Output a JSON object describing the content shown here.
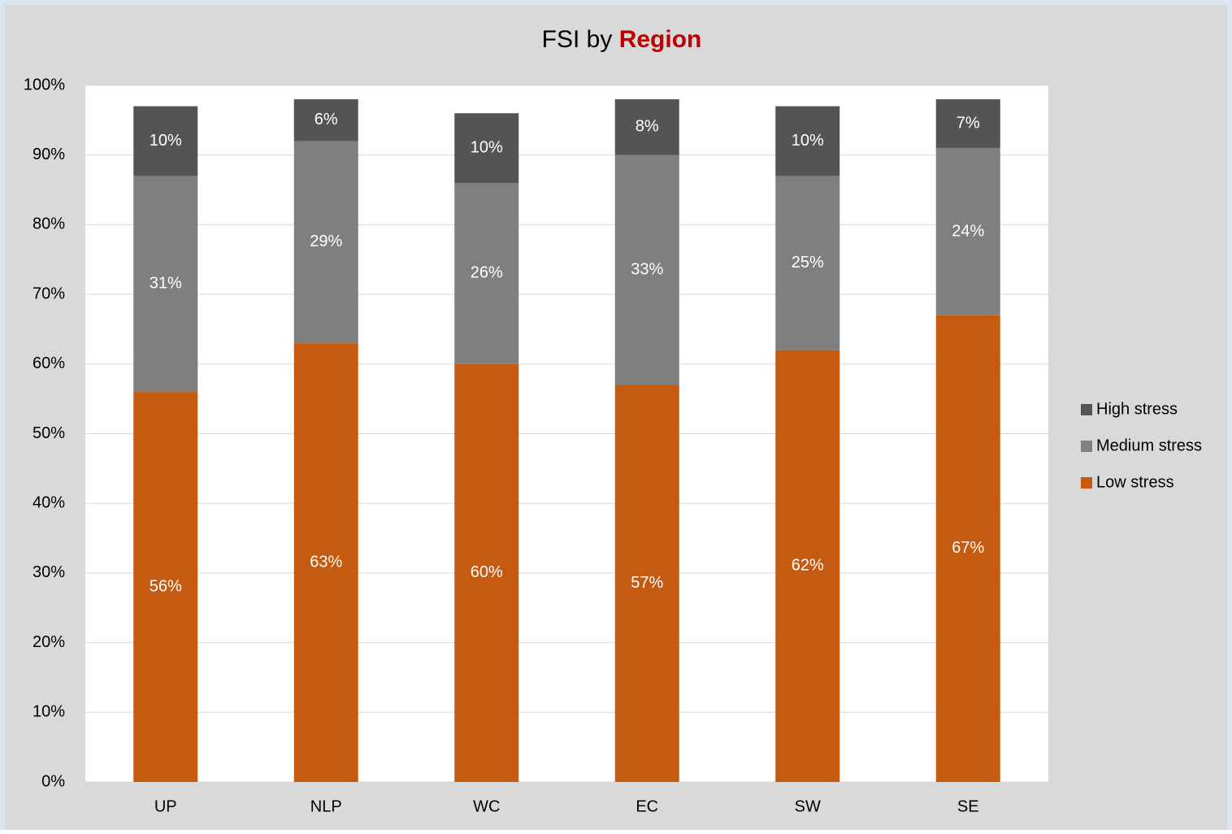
{
  "chart_data": {
    "type": "stacked_bar",
    "title": "FSI by",
    "title_emphasis": "Region",
    "categories": [
      "UP",
      "NLP",
      "WC",
      "EC",
      "SW",
      "SE"
    ],
    "series": [
      {
        "name": "Low stress",
        "color": "#c55a11",
        "values": [
          56,
          63,
          60,
          57,
          62,
          67
        ],
        "value_labels": [
          "56%",
          "63%",
          "60%",
          "57%",
          "62%",
          "67%"
        ]
      },
      {
        "name": "Medium stress",
        "color": "#7f7f7f",
        "values": [
          31,
          29,
          26,
          33,
          25,
          24
        ],
        "value_labels": [
          "31%",
          "29%",
          "26%",
          "33%",
          "25%",
          "24%"
        ]
      },
      {
        "name": "High stress",
        "color": "#545454",
        "values": [
          10,
          6,
          10,
          8,
          10,
          7
        ],
        "value_labels": [
          "10%",
          "6%",
          "10%",
          "8%",
          "10%",
          "7%"
        ]
      }
    ],
    "ylim": [
      0,
      100
    ],
    "yticks": [
      {
        "value": 0,
        "label": "0%"
      },
      {
        "value": 10,
        "label": "10%"
      },
      {
        "value": 20,
        "label": "20%"
      },
      {
        "value": 30,
        "label": "30%"
      },
      {
        "value": 40,
        "label": "40%"
      },
      {
        "value": 50,
        "label": "50%"
      },
      {
        "value": 60,
        "label": "60%"
      },
      {
        "value": 70,
        "label": "70%"
      },
      {
        "value": 80,
        "label": "80%"
      },
      {
        "value": 90,
        "label": "90%"
      },
      {
        "value": 100,
        "label": "100%"
      }
    ],
    "grid": true,
    "legend": "right"
  }
}
